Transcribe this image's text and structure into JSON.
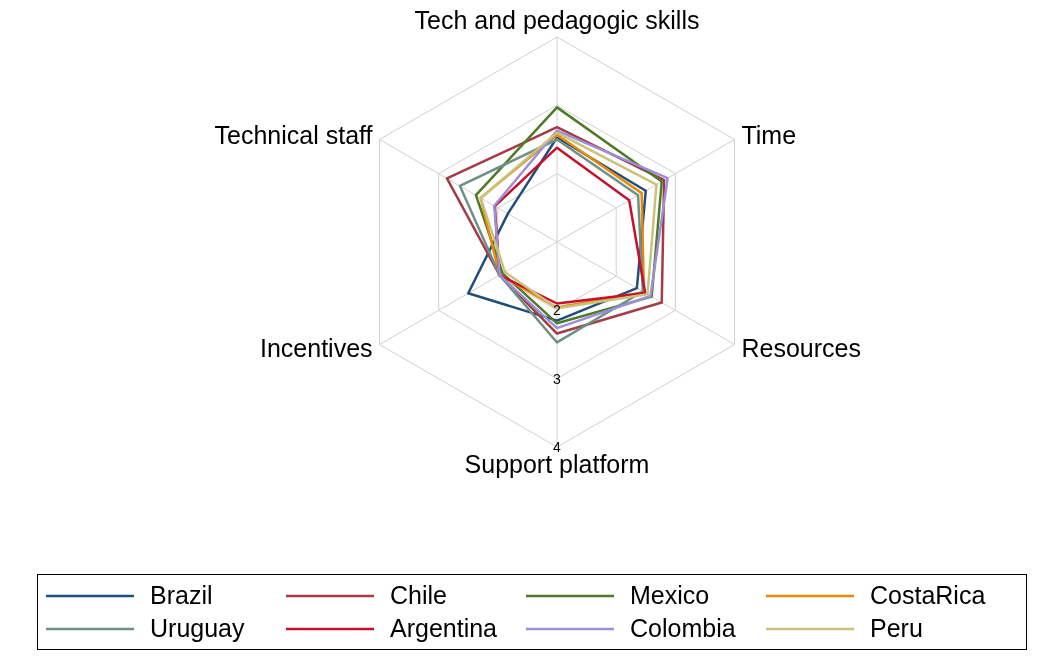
{
  "chart_data": {
    "type": "radar",
    "categories": [
      "Tech and pedagogic skills",
      "Time",
      "Resources",
      "Support platform",
      "Incentives",
      "Technical staff"
    ],
    "ylim": [
      1,
      4
    ],
    "yticks": [
      2,
      3,
      4
    ],
    "grid": true,
    "legend": "bottom",
    "series": [
      {
        "name": "Brazil",
        "color": "#1f4e79",
        "values": [
          2.53,
          2.5,
          2.35,
          2.15,
          2.5,
          1.83
        ]
      },
      {
        "name": "Chile",
        "color": "#a63a45",
        "values": [
          2.68,
          2.81,
          2.77,
          2.34,
          1.97,
          2.86
        ]
      },
      {
        "name": "Mexico",
        "color": "#4f7a28",
        "values": [
          2.97,
          2.77,
          2.6,
          2.19,
          1.92,
          2.37
        ]
      },
      {
        "name": "CostaRica",
        "color": "#e8890c",
        "values": [
          2.57,
          2.43,
          2.47,
          1.96,
          1.97,
          2.29
        ]
      },
      {
        "name": "Uruguay",
        "color": "#6f9088",
        "values": [
          2.5,
          2.37,
          2.45,
          2.47,
          1.97,
          2.64
        ]
      },
      {
        "name": "Argentina",
        "color": "#c8102e",
        "values": [
          2.38,
          2.22,
          2.49,
          1.9,
          1.97,
          2.05
        ]
      },
      {
        "name": "Colombia",
        "color": "#9b8fd8",
        "values": [
          2.63,
          2.87,
          2.58,
          2.26,
          1.97,
          2.06
        ]
      },
      {
        "name": "Peru",
        "color": "#c8c27a",
        "values": [
          2.6,
          2.68,
          2.53,
          1.97,
          1.88,
          2.29
        ]
      }
    ]
  }
}
